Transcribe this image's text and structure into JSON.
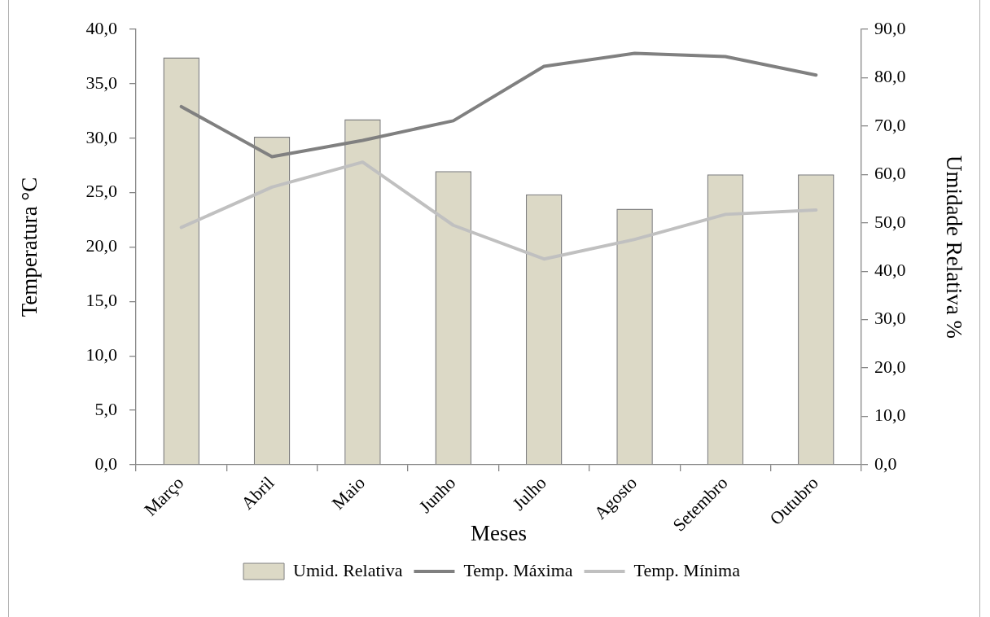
{
  "chart_data": {
    "type": "bar",
    "categories": [
      "Março",
      "Abril",
      "Maio",
      "Junho",
      "Julho",
      "Agosto",
      "Setembro",
      "Outubro"
    ],
    "xlabel": "Meses",
    "ylabel": "Temperatura °C",
    "y2label": "Umidade Relativa %",
    "series": [
      {
        "name": "Umid. Relativa",
        "type": "bar",
        "axis": "y2",
        "color": "#dcd9c6",
        "values": [
          84.2,
          67.8,
          71.4,
          60.7,
          55.9,
          52.9,
          60.0,
          60.0
        ]
      },
      {
        "name": "Temp. Máxima",
        "type": "line",
        "color": "#808080",
        "values": [
          32.9,
          28.3,
          29.8,
          31.6,
          36.6,
          37.8,
          37.5,
          35.8
        ]
      },
      {
        "name": "Temp. Mínima",
        "type": "line",
        "color": "#c0c0c0",
        "values": [
          21.8,
          25.5,
          27.8,
          22.0,
          18.9,
          20.7,
          23.0,
          23.4
        ]
      }
    ],
    "ylim": [
      0,
      40
    ],
    "yticks": [
      {
        "value": 0,
        "label": "0,0"
      },
      {
        "value": 5,
        "label": "5,0"
      },
      {
        "value": 10,
        "label": "10,0"
      },
      {
        "value": 15,
        "label": "15,0"
      },
      {
        "value": 20,
        "label": "20,0"
      },
      {
        "value": 25,
        "label": "25,0"
      },
      {
        "value": 30,
        "label": "30,0"
      },
      {
        "value": 35,
        "label": "35,0"
      },
      {
        "value": 40,
        "label": "40,0"
      }
    ],
    "y2lim": [
      0,
      90
    ],
    "y2ticks": [
      {
        "value": 0,
        "label": "0,0"
      },
      {
        "value": 10,
        "label": "10,0"
      },
      {
        "value": 20,
        "label": "20,0"
      },
      {
        "value": 30,
        "label": "30,0"
      },
      {
        "value": 40,
        "label": "40,0"
      },
      {
        "value": 50,
        "label": "50,0"
      },
      {
        "value": 60,
        "label": "60,0"
      },
      {
        "value": 70,
        "label": "70,0"
      },
      {
        "value": 80,
        "label": "80,0"
      },
      {
        "value": 90,
        "label": "90,0"
      }
    ],
    "legend": "bottom",
    "marker": "none",
    "grid": false
  }
}
